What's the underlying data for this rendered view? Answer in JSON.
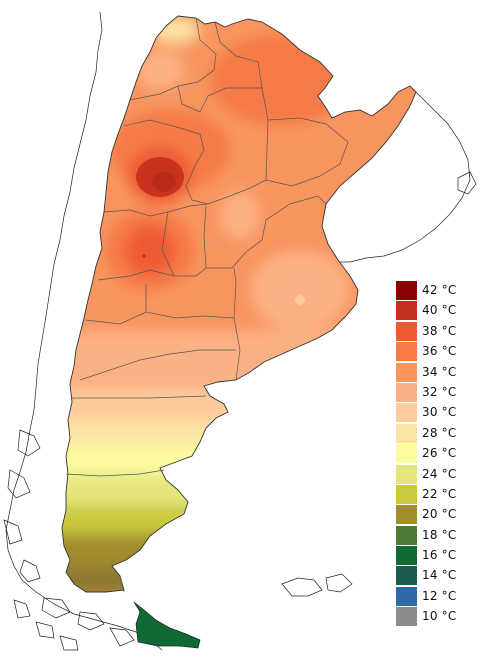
{
  "legend": {
    "items": [
      {
        "label": "42 °C",
        "color": "#8b0000"
      },
      {
        "label": "40 °C",
        "color": "#c4301e"
      },
      {
        "label": "38 °C",
        "color": "#ee5a34"
      },
      {
        "label": "36 °C",
        "color": "#f57a47"
      },
      {
        "label": "34 °C",
        "color": "#f8955f"
      },
      {
        "label": "32 °C",
        "color": "#fbb183"
      },
      {
        "label": "30 °C",
        "color": "#fdcb9d"
      },
      {
        "label": "28 °C",
        "color": "#fde3a3"
      },
      {
        "label": "26 °C",
        "color": "#fcfba0"
      },
      {
        "label": "24 °C",
        "color": "#e4e67a"
      },
      {
        "label": "22 °C",
        "color": "#c9c93c"
      },
      {
        "label": "20 °C",
        "color": "#a38c2e"
      },
      {
        "label": "18 °C",
        "color": "#4e7a38"
      },
      {
        "label": "16 °C",
        "color": "#0f6a35"
      },
      {
        "label": "14 °C",
        "color": "#1e5a4e"
      },
      {
        "label": "12 °C",
        "color": "#2f6aa8"
      },
      {
        "label": "10 °C",
        "color": "#8c8c8c"
      }
    ]
  }
}
